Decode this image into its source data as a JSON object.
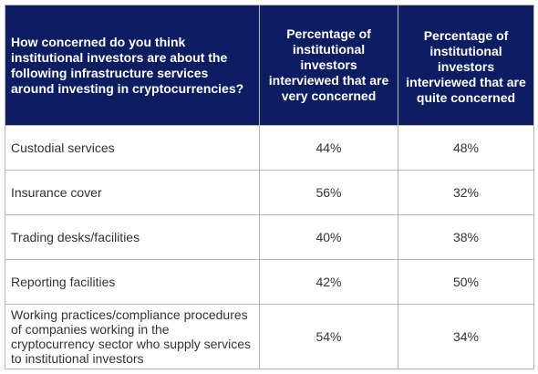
{
  "chart_data": {
    "type": "table",
    "columns": [
      "How concerned do you think institutional investors are about the following infrastructure services around investing in cryptocurrencies?",
      "Percentage of institutional investors interviewed that are very concerned",
      "Percentage of institutional investors interviewed that are quite concerned"
    ],
    "rows": [
      {
        "label": "Custodial services",
        "very": "44%",
        "quite": "48%"
      },
      {
        "label": "Insurance cover",
        "very": "56%",
        "quite": "32%"
      },
      {
        "label": "Trading desks/facilities",
        "very": "40%",
        "quite": "38%"
      },
      {
        "label": "Reporting facilities",
        "very": "42%",
        "quite": "50%"
      },
      {
        "label": "Working practices/compliance procedures of companies working in the cryptocurrency sector who supply services to institutional investors",
        "very": "54%",
        "quite": "34%"
      }
    ]
  },
  "colors": {
    "header_bg": "#0d1d62",
    "header_text": "#ffffff",
    "border": "#b7b7b7",
    "body_text": "#333333"
  }
}
